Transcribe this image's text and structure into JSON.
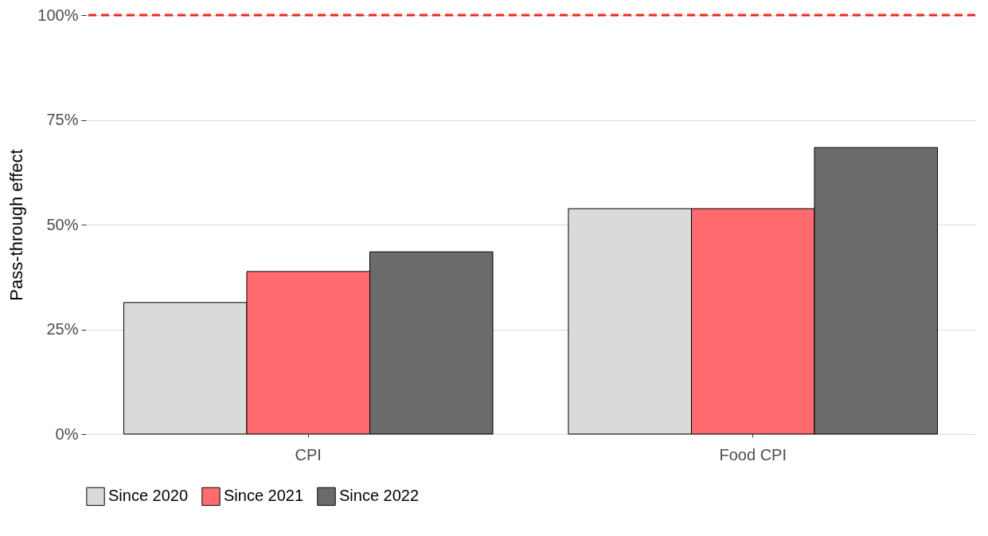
{
  "chart_data": {
    "type": "bar",
    "ylabel": "Pass-through effect",
    "categories": [
      "CPI",
      "Food CPI"
    ],
    "series": [
      {
        "name": "Since 2020",
        "color": "#dadada",
        "values": [
          31.4,
          53.8
        ]
      },
      {
        "name": "Since 2021",
        "color": "#ff6b6f",
        "values": [
          38.8,
          53.8
        ]
      },
      {
        "name": "Since 2022",
        "color": "#6b6b6b",
        "values": [
          43.5,
          68.4
        ]
      }
    ],
    "ylim": [
      0,
      100
    ],
    "yticks": [
      {
        "value": 0,
        "label": "0%"
      },
      {
        "value": 25,
        "label": "25%"
      },
      {
        "value": 50,
        "label": "50%"
      },
      {
        "value": 75,
        "label": "75%"
      },
      {
        "value": 100,
        "label": "100%"
      }
    ],
    "ref_lines": [
      {
        "axis": "y",
        "value": 100,
        "color": "#ee2a1b",
        "line_style": "dashed"
      }
    ],
    "grid": "y",
    "legend": "bottom"
  }
}
